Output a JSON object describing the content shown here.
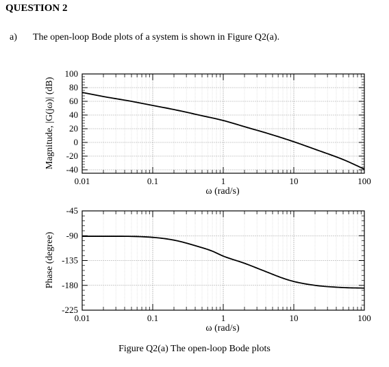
{
  "document": {
    "heading": "QUESTION 2",
    "question_label": "a)",
    "question_text": "The open-loop Bode plots of a system is shown in Figure Q2(a).",
    "caption": "Figure Q2(a) The open-loop Bode plots"
  },
  "chart_data": [
    {
      "type": "line",
      "title": "",
      "xlabel": "ω (rad/s)",
      "ylabel": "Magnitude, |G(jω)| (dB)",
      "xscale": "log",
      "xlim": [
        0.01,
        100
      ],
      "ylim": [
        -45,
        100
      ],
      "grid": true,
      "x_ticks": [
        "0.01",
        "0.1",
        "1",
        "10",
        "100"
      ],
      "y_ticks": [
        "100",
        "80",
        "60",
        "40",
        "20",
        "0",
        "-20",
        "-40"
      ],
      "series": [
        {
          "x": [
            0.01,
            0.02,
            0.05,
            0.1,
            0.2,
            0.5,
            1,
            2,
            5,
            10,
            20,
            50,
            100
          ],
          "y": [
            73,
            67,
            60,
            54,
            48,
            39,
            32,
            23,
            11,
            1,
            -10,
            -25,
            -39
          ]
        }
      ],
      "color": "#000000"
    },
    {
      "type": "line",
      "title": "",
      "xlabel": "ω (rad/s)",
      "ylabel": "Phase (degree)",
      "xscale": "log",
      "xlim": [
        0.01,
        100
      ],
      "ylim": [
        -225,
        -45
      ],
      "grid": true,
      "x_ticks": [
        "0.01",
        "0.1",
        "1",
        "10",
        "100"
      ],
      "y_ticks": [
        "-45",
        "-90",
        "-135",
        "-180",
        "-225"
      ],
      "series": [
        {
          "x": [
            0.01,
            0.03,
            0.1,
            0.2,
            0.4,
            0.7,
            1,
            2,
            4,
            7,
            10,
            20,
            50,
            100
          ],
          "y": [
            -91,
            -91,
            -93,
            -98,
            -108,
            -118,
            -127,
            -140,
            -155,
            -167,
            -173,
            -180,
            -184,
            -185
          ]
        }
      ],
      "color": "#000000"
    }
  ]
}
